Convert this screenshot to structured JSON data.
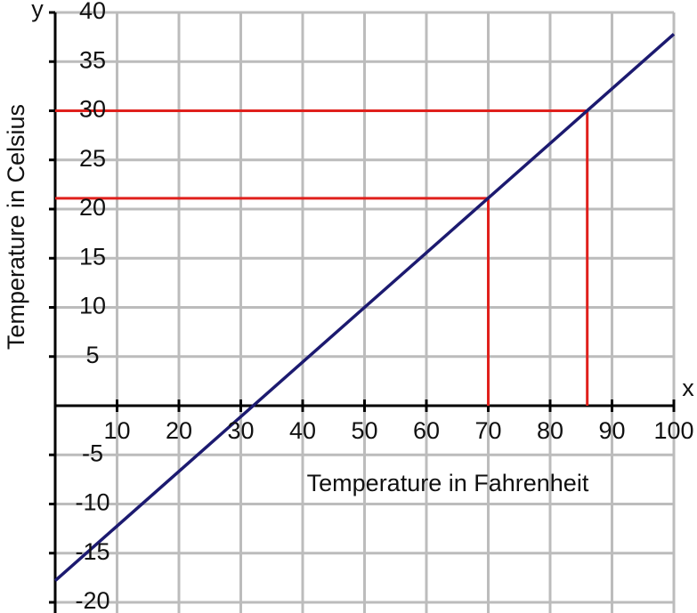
{
  "chart_data": {
    "type": "line",
    "xlabel": "Temperature in Fahrenheit",
    "ylabel": "Temperature in Celsius",
    "x_axis_letter": "x",
    "y_axis_letter": "y",
    "x": [
      0,
      100
    ],
    "series": [
      {
        "color": "#1c1a70",
        "values": [
          -17.8,
          37.8
        ]
      }
    ],
    "guides": [
      {
        "x": 70,
        "y": 21.1,
        "color": "#e0201c"
      },
      {
        "x": 86,
        "y": 30,
        "color": "#e0201c"
      }
    ],
    "xlim": [
      0,
      100
    ],
    "ylim": [
      -20,
      40
    ],
    "xticks": [
      10,
      20,
      30,
      40,
      50,
      60,
      70,
      80,
      90,
      100
    ],
    "yticks": [
      -20,
      -15,
      -10,
      -5,
      5,
      10,
      15,
      20,
      25,
      30,
      35,
      40
    ],
    "grid": true,
    "grid_step_y": 5
  }
}
